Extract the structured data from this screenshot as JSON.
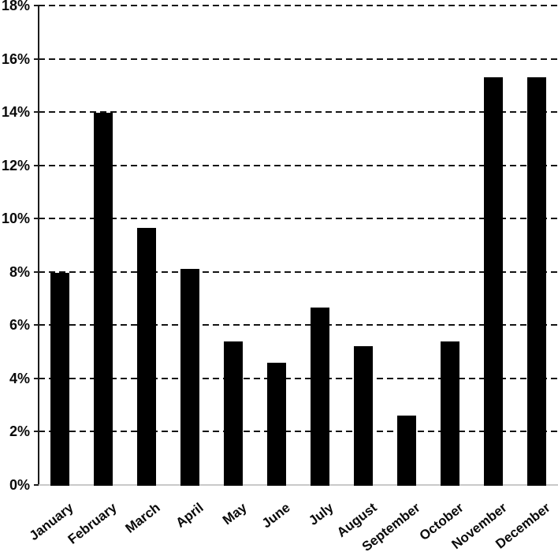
{
  "chart_data": {
    "type": "bar",
    "title": "",
    "xlabel": "",
    "ylabel": "",
    "categories": [
      "January",
      "February",
      "March",
      "April",
      "May",
      "June",
      "July",
      "August",
      "September",
      "October",
      "November",
      "December"
    ],
    "values": [
      7.95,
      13.97,
      9.65,
      8.1,
      5.4,
      4.6,
      6.65,
      5.2,
      2.6,
      5.4,
      15.3,
      15.3
    ],
    "value_unit": "%",
    "ylim": [
      0,
      18
    ],
    "y_tick_step": 2,
    "y_tick_labels": [
      "0%",
      "2%",
      "4%",
      "6%",
      "8%",
      "10%",
      "12%",
      "14%",
      "16%",
      "18%"
    ],
    "grid": "horizontal-dashed",
    "grid_zero_line": "solid-light-gray",
    "legend": "none",
    "bar_color": "#000000",
    "gridline_color": "#141414",
    "axis_line_color": "#1c1c1c",
    "baseline_color": "#c9c9c9",
    "text_color": "#0a0a0a",
    "x_label_rotation_deg": -38
  }
}
